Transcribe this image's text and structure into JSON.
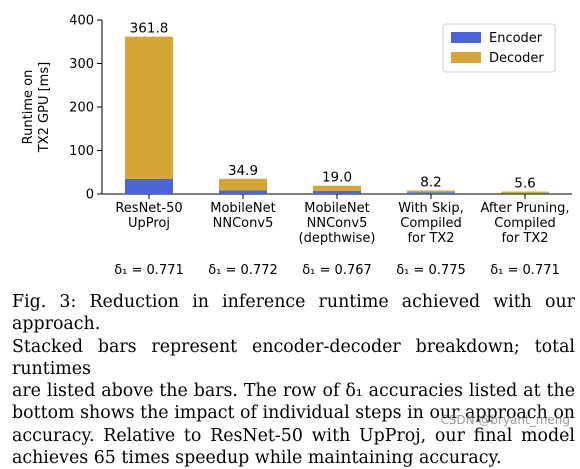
{
  "chart_data": {
    "type": "bar",
    "stacked": true,
    "ylabel": "Runtime on TX2 GPU [ms]",
    "xlabel": "",
    "title": "",
    "ylim": [
      0,
      400
    ],
    "yticks": [
      0,
      100,
      200,
      300,
      400
    ],
    "categories": [
      [
        "ResNet-50",
        "UpProj"
      ],
      [
        "MobileNet",
        "NNConv5"
      ],
      [
        "MobileNet",
        "NNConv5",
        "(depthwise)"
      ],
      [
        "With Skip,",
        "Compiled",
        "for TX2"
      ],
      [
        "After Pruning,",
        "Compiled",
        "for TX2"
      ]
    ],
    "series": [
      {
        "name": "Encoder",
        "color": "#4c64d8",
        "values": [
          35,
          8,
          7,
          4,
          2.5
        ]
      },
      {
        "name": "Decoder",
        "color": "#d4a637",
        "values": [
          326.8,
          26.9,
          12.0,
          4.2,
          3.1
        ]
      }
    ],
    "totals": [
      "361.8",
      "34.9",
      "19.0",
      "8.2",
      "5.6"
    ],
    "accuracies": [
      "δ₁ = 0.771",
      "δ₁ = 0.772",
      "δ₁ = 0.767",
      "δ₁ = 0.775",
      "δ₁ = 0.771"
    ],
    "legend_position": "top-right",
    "grid": false
  },
  "caption": {
    "lines": [
      "Fig. 3: Reduction in inference runtime achieved with our approach.",
      "Stacked bars represent encoder-decoder breakdown; total runtimes",
      "are listed above the bars. The row of δ₁ accuracies listed at the",
      "bottom shows the impact of individual steps in our approach on",
      "accuracy. Relative to ResNet-50 with UpProj, our final model",
      "achieves 65 times speedup while maintaining accuracy."
    ]
  },
  "watermark": "CSDN @bryant_meng"
}
